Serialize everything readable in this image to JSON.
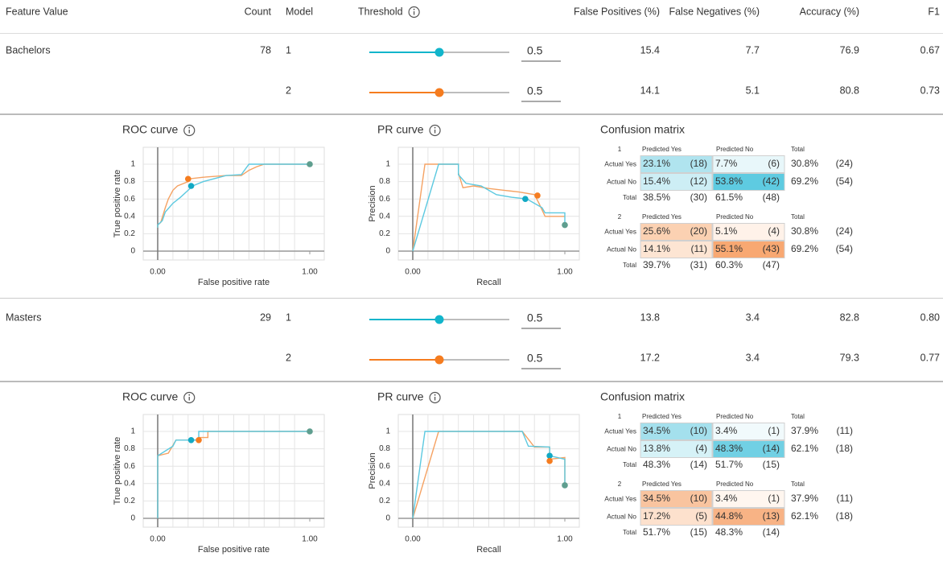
{
  "header": {
    "feature_value": "Feature Value",
    "count": "Count",
    "model": "Model",
    "threshold": "Threshold",
    "fp": "False Positives (%)",
    "fn": "False Negatives (%)",
    "accuracy": "Accuracy (%)",
    "f1": "F1"
  },
  "slider_range": [
    0,
    1
  ],
  "groups": [
    {
      "feature_value": "Bachelors",
      "count": 78,
      "models": [
        {
          "model": 1,
          "color": "#12b5cb",
          "threshold": 0.5,
          "fp": 15.4,
          "fn": 7.7,
          "accuracy": 76.9,
          "f1": "0.67"
        },
        {
          "model": 2,
          "color": "#f57c1f",
          "threshold": 0.5,
          "fp": 14.1,
          "fn": 5.1,
          "accuracy": 80.8,
          "f1": "0.73"
        }
      ],
      "roc": {
        "title": "ROC curve",
        "x_label": "False positive rate",
        "y_label": "True positive rate",
        "xlim": [
          0,
          1
        ],
        "ylim": [
          0,
          1
        ],
        "xticks": [
          {
            "value": 0,
            "label": "0.00"
          },
          {
            "value": 1,
            "label": "1.00"
          }
        ],
        "xgrid": [
          0.1,
          0.2,
          0.3,
          0.4,
          0.5,
          0.6,
          0.7,
          0.8,
          0.9
        ],
        "yticks": [
          0,
          0.2,
          0.4,
          0.6,
          0.8,
          1
        ],
        "series": [
          {
            "color": "#f5a263",
            "x": [
              0,
              0,
              0.02,
              0.05,
              0.07,
              0.1,
              0.13,
              0.2,
              0.2,
              0.3,
              0.45,
              0.55,
              0.6,
              0.65,
              0.7,
              1
            ],
            "y": [
              0.27,
              0.3,
              0.33,
              0.5,
              0.6,
              0.7,
              0.75,
              0.8,
              0.83,
              0.85,
              0.87,
              0.87,
              0.93,
              0.97,
              1,
              1
            ]
          },
          {
            "color": "#5cc9e0",
            "x": [
              0,
              0,
              0.03,
              0.05,
              0.1,
              0.15,
              0.2,
              0.23,
              0.3,
              0.45,
              0.55,
              0.6,
              1
            ],
            "y": [
              0.27,
              0.3,
              0.35,
              0.45,
              0.55,
              0.62,
              0.7,
              0.75,
              0.8,
              0.87,
              0.88,
              1,
              1
            ]
          }
        ],
        "markers": [
          {
            "x": 0.2,
            "y": 0.83,
            "color": "#f57c1f"
          },
          {
            "x": 0.22,
            "y": 0.75,
            "color": "#12a9c4"
          },
          {
            "x": 1,
            "y": 1,
            "color": "#5f9e8f"
          }
        ]
      },
      "pr": {
        "title": "PR curve",
        "x_label": "Recall",
        "y_label": "Precision",
        "xlim": [
          0,
          1
        ],
        "ylim": [
          0,
          1
        ],
        "xticks": [
          {
            "value": 0,
            "label": "0.00"
          },
          {
            "value": 1,
            "label": "1.00"
          }
        ],
        "xgrid": [
          0.1,
          0.2,
          0.3,
          0.4,
          0.5,
          0.6,
          0.7,
          0.8,
          0.9
        ],
        "yticks": [
          0,
          0.2,
          0.4,
          0.6,
          0.8,
          1
        ],
        "series": [
          {
            "color": "#f5a263",
            "x": [
              0,
              0.08,
              0.3,
              0.3,
              0.33,
              0.4,
              0.5,
              0.6,
              0.7,
              0.8,
              0.83,
              0.87,
              1
            ],
            "y": [
              0,
              1,
              1,
              0.9,
              0.73,
              0.75,
              0.72,
              0.7,
              0.68,
              0.65,
              0.55,
              0.4,
              0.4
            ]
          },
          {
            "color": "#5cc9e0",
            "x": [
              0,
              0.17,
              0.3,
              0.3,
              0.35,
              0.45,
              0.55,
              0.65,
              0.75,
              0.8,
              0.85,
              0.87,
              1,
              1
            ],
            "y": [
              0,
              1,
              1,
              0.88,
              0.78,
              0.75,
              0.65,
              0.62,
              0.6,
              0.55,
              0.5,
              0.44,
              0.44,
              0.3
            ]
          }
        ],
        "markers": [
          {
            "x": 0.74,
            "y": 0.6,
            "color": "#12a9c4"
          },
          {
            "x": 0.82,
            "y": 0.64,
            "color": "#f57c1f"
          },
          {
            "x": 1,
            "y": 0.3,
            "color": "#5f9e8f"
          }
        ]
      },
      "cm": {
        "title": "Confusion matrix",
        "col_headers": [
          "Predicted Yes",
          "Predicted No",
          "Total"
        ],
        "row_labels": [
          "Actual Yes",
          "Actual No",
          "Total"
        ],
        "matrices": [
          {
            "model": 1,
            "rows": [
              {
                "cells": [
                  {
                    "pct": "23.1%",
                    "count": "(18)",
                    "color": "#b0e4ef"
                  },
                  {
                    "pct": "7.7%",
                    "count": "(6)",
                    "color": "#e8f7fa"
                  }
                ],
                "total": {
                  "pct": "30.8%",
                  "count": "(24)"
                }
              },
              {
                "cells": [
                  {
                    "pct": "15.4%",
                    "count": "(12)",
                    "color": "#cdeef5"
                  },
                  {
                    "pct": "53.8%",
                    "count": "(42)",
                    "color": "#5ecbe1"
                  }
                ],
                "total": {
                  "pct": "69.2%",
                  "count": "(54)"
                }
              }
            ],
            "totals": [
              {
                "pct": "38.5%",
                "count": "(30)"
              },
              {
                "pct": "61.5%",
                "count": "(48)"
              }
            ]
          },
          {
            "model": 2,
            "rows": [
              {
                "cells": [
                  {
                    "pct": "25.6%",
                    "count": "(20)",
                    "color": "#fbd1b2"
                  },
                  {
                    "pct": "5.1%",
                    "count": "(4)",
                    "color": "#fff2e9"
                  }
                ],
                "total": {
                  "pct": "30.8%",
                  "count": "(24)"
                }
              },
              {
                "cells": [
                  {
                    "pct": "14.1%",
                    "count": "(11)",
                    "color": "#fde5d3"
                  },
                  {
                    "pct": "55.1%",
                    "count": "(43)",
                    "color": "#f8a872"
                  }
                ],
                "total": {
                  "pct": "69.2%",
                  "count": "(54)"
                }
              }
            ],
            "totals": [
              {
                "pct": "39.7%",
                "count": "(31)"
              },
              {
                "pct": "60.3%",
                "count": "(47)"
              }
            ]
          }
        ]
      }
    },
    {
      "feature_value": "Masters",
      "count": 29,
      "models": [
        {
          "model": 1,
          "color": "#12b5cb",
          "threshold": 0.5,
          "fp": 13.8,
          "fn": 3.4,
          "accuracy": 82.8,
          "f1": "0.80"
        },
        {
          "model": 2,
          "color": "#f57c1f",
          "threshold": 0.5,
          "fp": 17.2,
          "fn": 3.4,
          "accuracy": 79.3,
          "f1": "0.77"
        }
      ],
      "roc": {
        "title": "ROC curve",
        "x_label": "False positive rate",
        "y_label": "True positive rate",
        "xlim": [
          0,
          1
        ],
        "ylim": [
          0,
          1
        ],
        "xticks": [
          {
            "value": 0,
            "label": "0.00"
          },
          {
            "value": 1,
            "label": "1.00"
          }
        ],
        "xgrid": [
          0.1,
          0.2,
          0.3,
          0.4,
          0.5,
          0.6,
          0.7,
          0.8,
          0.9
        ],
        "yticks": [
          0,
          0.2,
          0.4,
          0.6,
          0.8,
          1
        ],
        "series": [
          {
            "color": "#f5a263",
            "x": [
              0,
              0,
              0.07,
              0.12,
              0.27,
              0.27,
              0.33,
              0.33,
              1
            ],
            "y": [
              0,
              0.72,
              0.75,
              0.9,
              0.9,
              0.93,
              0.93,
              1,
              1
            ]
          },
          {
            "color": "#5cc9e0",
            "x": [
              0,
              0,
              0.1,
              0.12,
              0.27,
              0.27,
              1
            ],
            "y": [
              0,
              0.72,
              0.83,
              0.9,
              0.9,
              1,
              1
            ]
          }
        ],
        "markers": [
          {
            "x": 0.22,
            "y": 0.9,
            "color": "#12a9c4"
          },
          {
            "x": 0.27,
            "y": 0.9,
            "color": "#f57c1f"
          },
          {
            "x": 1,
            "y": 1,
            "color": "#5f9e8f"
          }
        ]
      },
      "pr": {
        "title": "PR curve",
        "x_label": "Recall",
        "y_label": "Precision",
        "xlim": [
          0,
          1
        ],
        "ylim": [
          0,
          1
        ],
        "xticks": [
          {
            "value": 0,
            "label": "0.00"
          },
          {
            "value": 1,
            "label": "1.00"
          }
        ],
        "xgrid": [
          0.1,
          0.2,
          0.3,
          0.4,
          0.5,
          0.6,
          0.7,
          0.8,
          0.9
        ],
        "yticks": [
          0,
          0.2,
          0.4,
          0.6,
          0.8,
          1
        ],
        "series": [
          {
            "color": "#f5a263",
            "x": [
              0,
              0.17,
              0.72,
              0.8,
              0.9,
              0.9,
              1,
              1
            ],
            "y": [
              0,
              1,
              1,
              0.82,
              0.82,
              0.68,
              0.7,
              0.38
            ]
          },
          {
            "color": "#5cc9e0",
            "x": [
              0,
              0.08,
              0.72,
              0.76,
              0.9,
              0.9,
              1,
              1
            ],
            "y": [
              0,
              1,
              1,
              0.83,
              0.82,
              0.72,
              0.68,
              0.38
            ]
          }
        ],
        "markers": [
          {
            "x": 0.9,
            "y": 0.72,
            "color": "#12a9c4"
          },
          {
            "x": 0.9,
            "y": 0.66,
            "color": "#f57c1f"
          },
          {
            "x": 1,
            "y": 0.38,
            "color": "#5f9e8f"
          }
        ]
      },
      "cm": {
        "title": "Confusion matrix",
        "col_headers": [
          "Predicted Yes",
          "Predicted No",
          "Total"
        ],
        "row_labels": [
          "Actual Yes",
          "Actual No",
          "Total"
        ],
        "matrices": [
          {
            "model": 1,
            "rows": [
              {
                "cells": [
                  {
                    "pct": "34.5%",
                    "count": "(10)",
                    "color": "#a4e0ed"
                  },
                  {
                    "pct": "3.4%",
                    "count": "(1)",
                    "color": "#f1fafc"
                  }
                ],
                "total": {
                  "pct": "37.9%",
                  "count": "(11)"
                }
              },
              {
                "cells": [
                  {
                    "pct": "13.8%",
                    "count": "(4)",
                    "color": "#d6f2f7"
                  },
                  {
                    "pct": "48.3%",
                    "count": "(14)",
                    "color": "#71d0e4"
                  }
                ],
                "total": {
                  "pct": "62.1%",
                  "count": "(18)"
                }
              }
            ],
            "totals": [
              {
                "pct": "48.3%",
                "count": "(14)"
              },
              {
                "pct": "51.7%",
                "count": "(15)"
              }
            ]
          },
          {
            "model": 2,
            "rows": [
              {
                "cells": [
                  {
                    "pct": "34.5%",
                    "count": "(10)",
                    "color": "#f9c49f"
                  },
                  {
                    "pct": "3.4%",
                    "count": "(1)",
                    "color": "#fff6ef"
                  }
                ],
                "total": {
                  "pct": "37.9%",
                  "count": "(11)"
                }
              },
              {
                "cells": [
                  {
                    "pct": "17.2%",
                    "count": "(5)",
                    "color": "#fde1cd"
                  },
                  {
                    "pct": "44.8%",
                    "count": "(13)",
                    "color": "#f8b385"
                  }
                ],
                "total": {
                  "pct": "62.1%",
                  "count": "(18)"
                }
              }
            ],
            "totals": [
              {
                "pct": "51.7%",
                "count": "(15)"
              },
              {
                "pct": "48.3%",
                "count": "(14)"
              }
            ]
          }
        ]
      }
    }
  ]
}
